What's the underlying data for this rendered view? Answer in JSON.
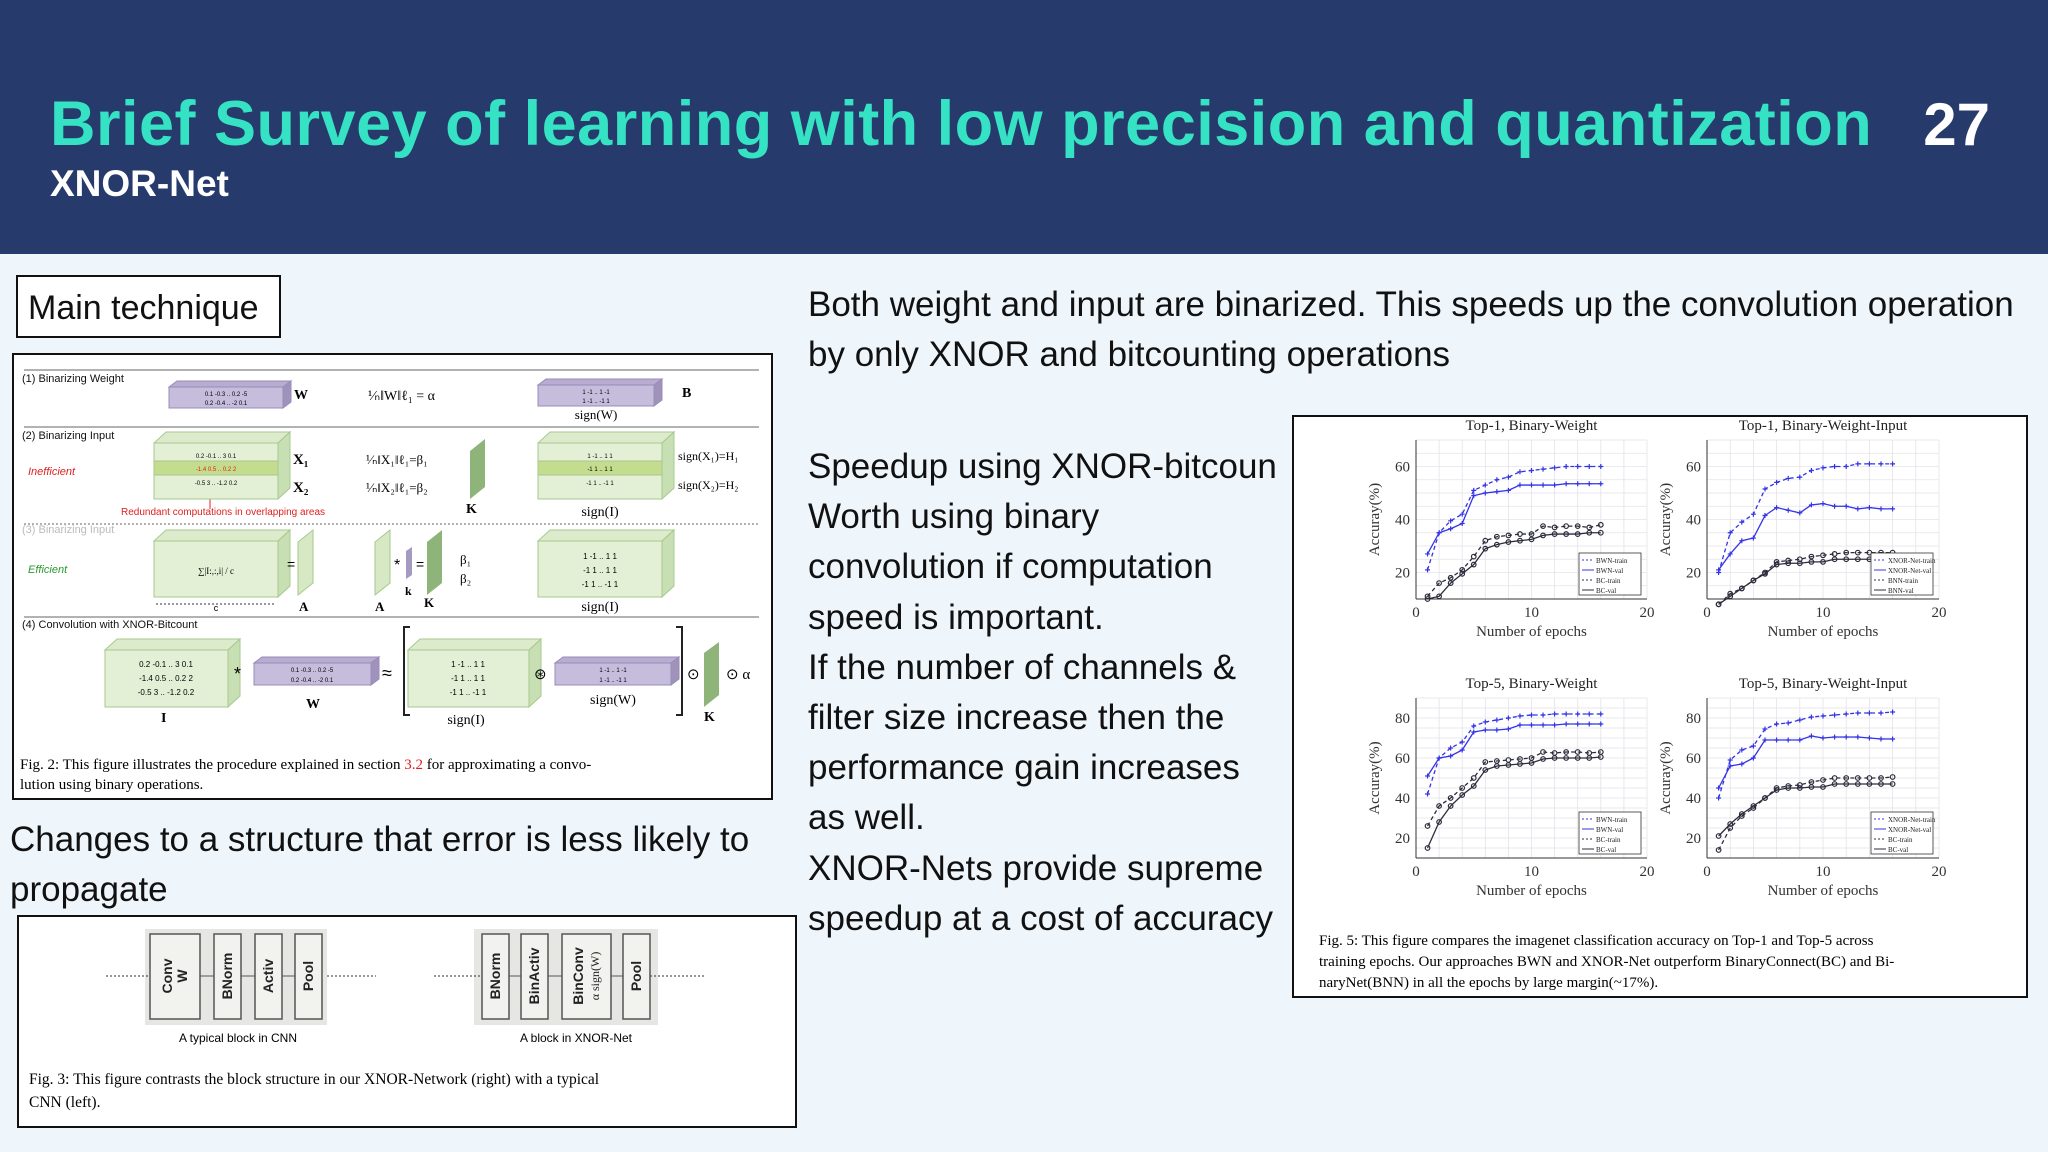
{
  "header": {
    "title": "Brief Survey of  learning with low precision and quantization",
    "subtitle": "XNOR-Net",
    "page_number": "27"
  },
  "main_technique_label": "Main technique",
  "fig2": {
    "sec1": "(1) Binarizing Weight",
    "sec2": "(2) Binarizing Input",
    "sec3": "(3) Binarizing Input",
    "sec4": "(4) Convolution with XNOR-Bitcount",
    "inefficient": "Inefficient",
    "efficient": "Efficient",
    "redundant": "Redundant computations in overlapping areas",
    "W": "W",
    "B": "B",
    "I": "I",
    "A": "A",
    "K": "K",
    "k": "k",
    "c": "c",
    "alpha_formula": "¹⁄ₙ‖W‖ℓ₁ = α",
    "beta1_formula": "¹⁄ₙ‖X₁‖ℓ₁=β₁",
    "beta2_formula": "¹⁄ₙ‖X₂‖ℓ₁=β₂",
    "X1": "X₁",
    "X2": "X₂",
    "H1": "sign(X₁)=H₁",
    "H2": "sign(X₂)=H₂",
    "signW": "sign(W)",
    "signI": "sign(I)",
    "sum_formula": "∑|I:,:,i| / c",
    "beta1": "β₁",
    "beta2": "β₂",
    "w_rows": [
      "0.1 -0.3 .. 0.2 -5",
      "0.2 -0.4 .. -2 0.1"
    ],
    "b_rows": [
      "1 -1 .. 1 -1",
      "1 -1 .. -1 1"
    ],
    "x_rows": [
      "0.2 -0.1 .. 3 0.1",
      "-1.4 0.5 .. 0.2 2",
      "-0.5 3 .. -1.2 0.2"
    ],
    "h_rows": [
      "1 -1 .. 1 1",
      "-1 1 .. 1 1",
      "-1 1 .. -1 1"
    ],
    "ops": {
      "star": "*",
      "eq": "=",
      "approx": "≈",
      "xnor": "⊛",
      "dot": "⊙",
      "dot_alpha": "⊙ α"
    },
    "caption_a": "Fig. 2: This figure illustrates the procedure explained in section ",
    "caption_ref": "3.2",
    "caption_b": " for approximating a convo-",
    "caption_c": "lution using binary operations."
  },
  "changes_text": "Changes to a structure that error is less likely to propagate",
  "fig3": {
    "cnn_blocks": [
      "Conv",
      "W",
      "BNorm",
      "Activ",
      "Pool"
    ],
    "xnor_blocks": [
      "BNorm",
      "BinActiv",
      "BinConv",
      "α sign(W)",
      "Pool"
    ],
    "cnn_caption": "A typical block in CNN",
    "xnor_caption": "A block in XNOR-Net",
    "caption_a": "Fig. 3: This figure contrasts the block structure in our XNOR-Network (right) with a typical",
    "caption_b": "CNN (left)."
  },
  "intro_text": "Both weight and input are binarized. This speeds up the convolution operation by only XNOR and bitcounting operations",
  "bullets": [
    "Speedup using XNOR-bitcoun",
    "Worth using binary convolution if computation speed is important.",
    "If the number of channels & filter size increase then the performance gain increases as well.",
    "XNOR-Nets provide supreme speedup at a cost of accuracy"
  ],
  "fig5": {
    "caption_a": "Fig. 5: This figure compares the imagenet classification accuracy on Top-1 and Top-5 across",
    "caption_b": "training epochs. Our approaches BWN and XNOR-Net outperform BinaryConnect(BC) and Bi-",
    "caption_c": "naryNet(BNN) in all the epochs by large margin(~17%)."
  },
  "colors": {
    "header_bg": "#273a6c",
    "title": "#35e2c4",
    "blue_series": "#3434e6",
    "dark_series": "#2c2c3c",
    "red_text": "#e02020",
    "green_text": "#2a9a2a"
  },
  "chart_data": [
    {
      "type": "line",
      "title": "Top-1, Binary-Weight",
      "xlabel": "Number of epochs",
      "ylabel": "Accuray(%)",
      "xlim": [
        0,
        20
      ],
      "ylim": [
        10,
        70
      ],
      "xticks": [
        0,
        10,
        20
      ],
      "yticks": [
        20,
        40,
        60
      ],
      "grid": true,
      "legend": "bottom-right",
      "x": [
        1,
        2,
        3,
        4,
        5,
        6,
        7,
        8,
        9,
        10,
        11,
        12,
        13,
        14,
        15,
        16
      ],
      "series": [
        {
          "name": "BWN-train",
          "values": [
            21,
            35,
            39.5,
            42,
            51,
            53,
            55,
            56,
            58,
            58.5,
            59,
            59.5,
            60,
            60,
            60,
            60
          ]
        },
        {
          "name": "BWN-val",
          "values": [
            27,
            35,
            36.5,
            38.5,
            49,
            50,
            50.5,
            51,
            53,
            53,
            53,
            53,
            53.5,
            53.5,
            53.5,
            53.5
          ]
        },
        {
          "name": "BC-train",
          "values": [
            11,
            16,
            18,
            21,
            26,
            32,
            33.5,
            34,
            34.5,
            34.5,
            37.5,
            37,
            37.5,
            37.5,
            37,
            38
          ]
        },
        {
          "name": "BC-val",
          "values": [
            10,
            11,
            16,
            19.5,
            23,
            29,
            30.5,
            31.5,
            32,
            32.5,
            34,
            34.5,
            34.5,
            34.5,
            35,
            35
          ]
        }
      ]
    },
    {
      "type": "line",
      "title": "Top-1, Binary-Weight-Input",
      "xlabel": "Number of epochs",
      "ylabel": "Accuray(%)",
      "xlim": [
        0,
        20
      ],
      "ylim": [
        10,
        70
      ],
      "xticks": [
        0,
        10,
        20
      ],
      "yticks": [
        20,
        40,
        60
      ],
      "grid": true,
      "legend": "bottom-right",
      "x": [
        1,
        2,
        3,
        4,
        5,
        6,
        7,
        8,
        9,
        10,
        11,
        12,
        13,
        14,
        15,
        16
      ],
      "series": [
        {
          "name": "XNOR-Net-train",
          "values": [
            20,
            35,
            39,
            42,
            51.5,
            54,
            55.5,
            56,
            58.5,
            59.5,
            60,
            60,
            61,
            61,
            61,
            61
          ]
        },
        {
          "name": "XNOR-Net-val",
          "values": [
            21,
            27,
            32,
            33,
            41.5,
            44.5,
            43.5,
            42.5,
            45.5,
            46,
            45,
            45,
            44,
            44.5,
            44,
            44
          ]
        },
        {
          "name": "BNN-train",
          "values": [
            8,
            12,
            14,
            17,
            20,
            24,
            24.5,
            25,
            26,
            26.5,
            27,
            27.5,
            27.5,
            27.5,
            27.5,
            27.5
          ]
        },
        {
          "name": "BNN-val",
          "values": [
            8,
            11,
            14,
            17,
            19.5,
            23,
            23.5,
            23.5,
            24,
            24,
            25,
            25,
            25,
            25,
            25,
            25
          ]
        }
      ]
    },
    {
      "type": "line",
      "title": "Top-5, Binary-Weight",
      "xlabel": "Number of epochs",
      "ylabel": "Accuray(%)",
      "xlim": [
        0,
        20
      ],
      "ylim": [
        10,
        90
      ],
      "xticks": [
        0,
        10,
        20
      ],
      "yticks": [
        20,
        40,
        60,
        80
      ],
      "grid": true,
      "legend": "bottom-right",
      "x": [
        1,
        2,
        3,
        4,
        5,
        6,
        7,
        8,
        9,
        10,
        11,
        12,
        13,
        14,
        15,
        16
      ],
      "series": [
        {
          "name": "BWN-train",
          "values": [
            42,
            60,
            65,
            68,
            76,
            78,
            79,
            80,
            81,
            81.5,
            81.5,
            82,
            82,
            82,
            82,
            82
          ]
        },
        {
          "name": "BWN-val",
          "values": [
            51,
            60,
            61,
            64,
            73,
            74,
            74,
            74.5,
            76.5,
            76.5,
            76.5,
            76.5,
            77,
            77,
            77,
            77
          ]
        },
        {
          "name": "BC-train",
          "values": [
            26,
            36,
            40,
            45,
            50,
            58,
            58.5,
            59,
            59.5,
            60,
            63,
            62.5,
            63,
            63,
            62.5,
            63
          ]
        },
        {
          "name": "BC-val",
          "values": [
            15,
            28,
            36,
            41.5,
            46,
            54,
            56,
            56.5,
            57,
            57.5,
            59.5,
            60,
            60,
            60,
            60,
            60.5
          ]
        }
      ]
    },
    {
      "type": "line",
      "title": "Top-5, Binary-Weight-Input",
      "xlabel": "Number of epochs",
      "ylabel": "Accuray(%)",
      "xlim": [
        0,
        20
      ],
      "ylim": [
        10,
        90
      ],
      "xticks": [
        0,
        10,
        20
      ],
      "yticks": [
        20,
        40,
        60,
        80
      ],
      "grid": true,
      "legend": "bottom-right",
      "x": [
        1,
        2,
        3,
        4,
        5,
        6,
        7,
        8,
        9,
        10,
        11,
        12,
        13,
        14,
        15,
        16
      ],
      "series": [
        {
          "name": "XNOR-Net-train",
          "values": [
            40,
            59,
            64,
            66,
            74.5,
            77,
            77.5,
            79,
            80.5,
            81,
            81.5,
            82,
            82.5,
            82.5,
            82.5,
            83
          ]
        },
        {
          "name": "XNOR-Net-val",
          "values": [
            45,
            56,
            57,
            60,
            69,
            69,
            69,
            69,
            71,
            70,
            70.5,
            70.5,
            70.5,
            70,
            69.5,
            69.5
          ]
        },
        {
          "name": "BC-train",
          "values": [
            14,
            25,
            31,
            35,
            40,
            45,
            46,
            46.5,
            48,
            49,
            50,
            50,
            50,
            50,
            50,
            50.5
          ]
        },
        {
          "name": "BC-val",
          "values": [
            21,
            27,
            32,
            36,
            40,
            44,
            45,
            45,
            45.5,
            45.5,
            47,
            47,
            47,
            47,
            47,
            47
          ]
        }
      ]
    }
  ]
}
